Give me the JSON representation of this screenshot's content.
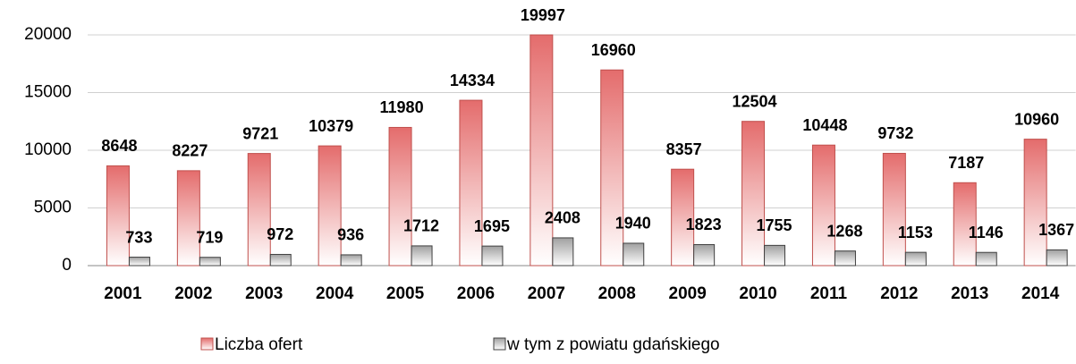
{
  "chart_data": {
    "type": "bar",
    "categories": [
      "2001",
      "2002",
      "2003",
      "2004",
      "2005",
      "2006",
      "2007",
      "2008",
      "2009",
      "2010",
      "2011",
      "2012",
      "2013",
      "2014"
    ],
    "series": [
      {
        "name": "Liczba ofert",
        "color": "#e46c6c",
        "values": [
          8648,
          8227,
          9721,
          10379,
          11980,
          14334,
          19997,
          16960,
          8357,
          12504,
          10448,
          9732,
          7187,
          10960
        ]
      },
      {
        "name": "w tym z powiatu gdańskiego",
        "color": "#a0a0a0",
        "values": [
          733,
          719,
          972,
          936,
          1712,
          1695,
          2408,
          1940,
          1823,
          1755,
          1268,
          1153,
          1146,
          1367
        ]
      }
    ],
    "ylim": [
      0,
      20000
    ],
    "yticks": [
      0,
      5000,
      10000,
      15000,
      20000
    ],
    "grid": true,
    "legend": "bottom"
  }
}
